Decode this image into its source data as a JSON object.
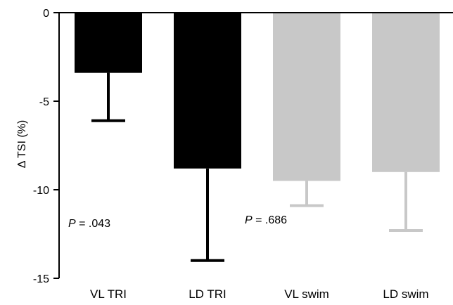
{
  "chart_data": {
    "type": "bar",
    "categories": [
      "VL TRI",
      "LD TRI",
      "VL swim",
      "LD swim"
    ],
    "values": [
      -3.4,
      -8.8,
      -9.5,
      -9.0
    ],
    "error_bars": [
      2.7,
      5.2,
      1.4,
      3.3
    ],
    "bar_colors": [
      "#000000",
      "#000000",
      "#c8c8c8",
      "#c8c8c8"
    ],
    "title": "",
    "xlabel": "",
    "ylabel": "Δ TSI (%)",
    "ylim": [
      -15,
      0
    ],
    "yticks": [
      0,
      -5,
      -10,
      -15
    ],
    "grid": false,
    "annotations": [
      {
        "p": "P",
        "text": " = .043"
      },
      {
        "p": "P",
        "text": " = .686"
      }
    ]
  }
}
